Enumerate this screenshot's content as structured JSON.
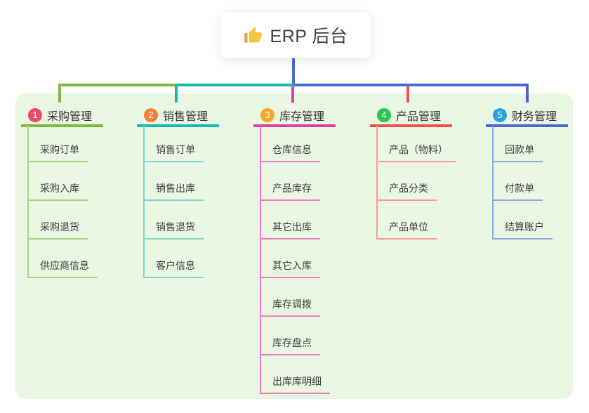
{
  "root": {
    "label": "ERP 后台",
    "icon": "thumbs-up-icon",
    "icon_colors": {
      "hand": "#f7c63f",
      "cuff": "#e8a33c"
    }
  },
  "canvas": {
    "background": "#ffffff",
    "panel_color": "#e9f6e2",
    "root_connector_color": "#4a67d3"
  },
  "branches": [
    {
      "badge": "1",
      "label": "采购管理",
      "badge_color": "#e94b6b",
      "line_color": "#7eb83e",
      "child_line_color": "#a9d585",
      "children": [
        "采购订单",
        "采购入库",
        "采购退货",
        "供应商信息"
      ]
    },
    {
      "badge": "2",
      "label": "销售管理",
      "badge_color": "#f57f3e",
      "line_color": "#14bcad",
      "child_line_color": "#82d7cb",
      "children": [
        "销售订单",
        "销售出库",
        "销售退货",
        "客户信息"
      ]
    },
    {
      "badge": "3",
      "label": "库存管理",
      "badge_color": "#faa723",
      "line_color": "#df3ea6",
      "child_line_color": "#f07ec0",
      "children": [
        "仓库信息",
        "产品库存",
        "其它出库",
        "其它入库",
        "库存调拨",
        "库存盘点",
        "出库库明细"
      ]
    },
    {
      "badge": "4",
      "label": "产品管理",
      "badge_color": "#2dc356",
      "line_color": "#ef5051",
      "child_line_color": "#f69c9c",
      "children": [
        "产品（物料）",
        "产品分类",
        "产品单位"
      ]
    },
    {
      "badge": "5",
      "label": "财务管理",
      "badge_color": "#29a3df",
      "line_color": "#4a67d3",
      "child_line_color": "#92a7e2",
      "children": [
        "回款单",
        "付款单",
        "结算账户"
      ]
    }
  ]
}
